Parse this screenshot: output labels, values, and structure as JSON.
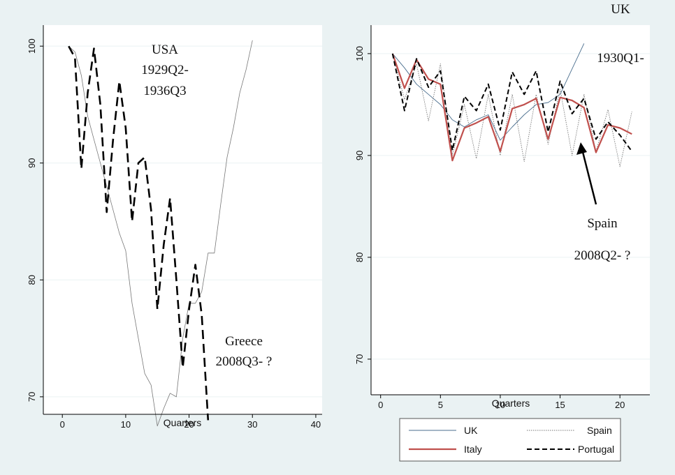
{
  "chart_data": [
    {
      "type": "line",
      "xlabel": "Quarters",
      "xlim": [
        -3,
        41
      ],
      "ylim": [
        68.5,
        101.8
      ],
      "xticks": [
        0,
        10,
        20,
        30,
        40
      ],
      "yticks": [
        70,
        80,
        90,
        100
      ],
      "grid": true,
      "annotations": [
        {
          "lines": [
            "USA",
            "1929Q2-",
            "1936Q3"
          ]
        },
        {
          "lines": [
            "Greece",
            "2008Q3- ?"
          ]
        }
      ],
      "series": [
        {
          "style": "thin-gray",
          "color": "#777777",
          "x": [
            1,
            2,
            3,
            4,
            5,
            6,
            7,
            8,
            9,
            10,
            11,
            12,
            13,
            14,
            15,
            16,
            17,
            18,
            19,
            20,
            21,
            22,
            23,
            24,
            25,
            26,
            27,
            28,
            29,
            30
          ],
          "y": [
            100,
            99.5,
            97.5,
            94,
            92,
            90,
            88,
            86,
            84,
            82.5,
            78,
            75,
            72,
            71,
            67.5,
            69,
            70.3,
            70,
            75,
            78,
            78,
            79,
            82.3,
            82.3,
            86.5,
            90.5,
            93,
            96,
            98,
            100.5
          ]
        },
        {
          "style": "thick-dashed",
          "color": "#000000",
          "x": [
            1,
            2,
            3,
            4,
            5,
            6,
            7,
            8,
            9,
            10,
            11,
            12,
            13,
            14,
            15,
            16,
            17,
            18,
            19,
            20,
            21,
            22,
            23
          ],
          "y": [
            100,
            99,
            89.5,
            96,
            99.8,
            95,
            85.8,
            92,
            97,
            93,
            85,
            90,
            90.5,
            86,
            77.5,
            83,
            87,
            80,
            72.5,
            77.5,
            81.3,
            77,
            68
          ]
        }
      ]
    },
    {
      "type": "line",
      "xlabel": "Quarters",
      "xlim": [
        -0.8,
        22.5
      ],
      "ylim": [
        66.5,
        102.8
      ],
      "xticks": [
        0,
        5,
        10,
        15,
        20
      ],
      "yticks": [
        70,
        80,
        90,
        100
      ],
      "grid": true,
      "annotations": [
        {
          "lines": [
            "UK",
            "1930Q1-"
          ]
        },
        {
          "lines": [
            "Spain",
            "2008Q2- ?"
          ]
        }
      ],
      "legend": {
        "placement": "bottom",
        "entries": [
          "UK",
          "Spain",
          "Italy",
          "Portugal"
        ]
      },
      "series": [
        {
          "name": "UK",
          "style": "thin-solid",
          "color": "#4a6e8e",
          "x": [
            1,
            2,
            3,
            4,
            5,
            6,
            7,
            8,
            9,
            10,
            11,
            12,
            13,
            14,
            15,
            16,
            17
          ],
          "y": [
            100,
            98.6,
            97,
            96,
            95,
            93.5,
            92.8,
            93.5,
            94,
            91.5,
            92.8,
            94,
            95,
            95.2,
            96,
            98.5,
            101
          ]
        },
        {
          "name": "Spain",
          "style": "thin-dotted",
          "color": "#777777",
          "x": [
            1,
            2,
            3,
            4,
            5,
            6,
            7,
            8,
            9,
            10,
            11,
            12,
            13,
            14,
            15,
            16,
            17,
            18,
            19,
            20,
            21
          ],
          "y": [
            100,
            95.5,
            99,
            93.4,
            99,
            90,
            95,
            89.7,
            96,
            90,
            96,
            89.4,
            96,
            91.1,
            96.5,
            90,
            96,
            90.4,
            94.5,
            88.9,
            94.3
          ]
        },
        {
          "name": "Italy",
          "style": "solid-red",
          "color": "#c0504d",
          "x": [
            1,
            2,
            3,
            4,
            5,
            6,
            7,
            8,
            9,
            10,
            11,
            12,
            13,
            14,
            15,
            16,
            17,
            18,
            19,
            20,
            21
          ],
          "y": [
            100,
            96.6,
            99.4,
            97.5,
            97,
            89.5,
            92.7,
            93.2,
            93.8,
            90.4,
            94.6,
            95,
            95.6,
            91.6,
            95.7,
            95.4,
            94.7,
            90.3,
            93,
            92.7,
            92.1
          ]
        },
        {
          "name": "Portugal",
          "style": "dashed-black",
          "color": "#000000",
          "x": [
            1,
            2,
            3,
            4,
            5,
            6,
            7,
            8,
            9,
            10,
            11,
            12,
            13,
            14,
            15,
            16,
            17,
            18,
            19,
            20,
            21
          ],
          "y": [
            100,
            94.4,
            99.5,
            96.7,
            98.3,
            90.5,
            95.8,
            94.4,
            97,
            92.5,
            98.2,
            96,
            98.3,
            92.3,
            97.3,
            94.1,
            95.6,
            91.6,
            93.3,
            92,
            90.4
          ]
        }
      ]
    }
  ]
}
